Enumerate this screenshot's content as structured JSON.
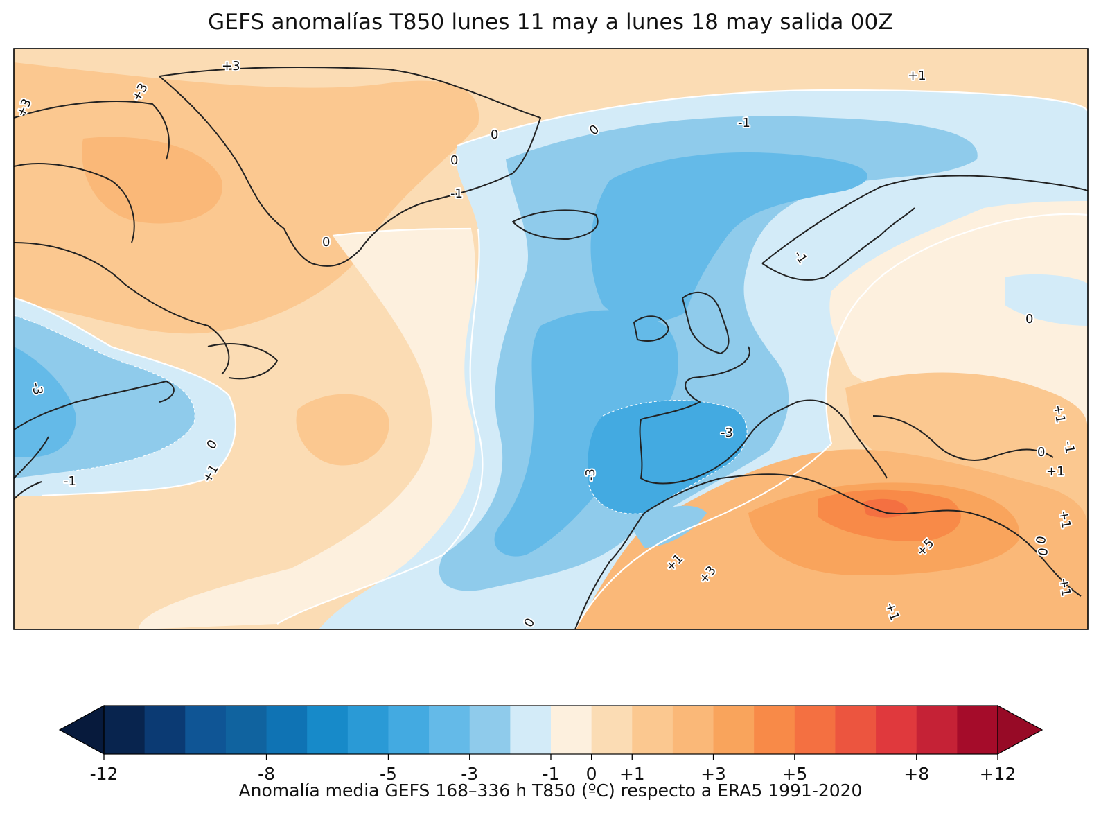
{
  "title": "GEFS anomalías T850 lunes 11 may a lunes 18 may salida 00Z",
  "map": {
    "contour_labels": [
      {
        "text": "+3"
      },
      {
        "text": "+3"
      },
      {
        "text": "+3"
      },
      {
        "text": "0"
      },
      {
        "text": "0"
      },
      {
        "text": "0"
      },
      {
        "text": "-1"
      },
      {
        "text": "0"
      },
      {
        "text": "-1"
      },
      {
        "text": "+1"
      },
      {
        "text": "-1"
      },
      {
        "text": "0"
      },
      {
        "text": "-3"
      },
      {
        "text": "0"
      },
      {
        "text": "+1"
      },
      {
        "text": "-1"
      },
      {
        "text": "-3"
      },
      {
        "text": "-3"
      },
      {
        "text": "+1"
      },
      {
        "text": "+3"
      },
      {
        "text": "+5"
      },
      {
        "text": "0"
      },
      {
        "text": "+1"
      },
      {
        "text": "0"
      },
      {
        "text": "-1"
      },
      {
        "text": "+1"
      },
      {
        "text": "+1"
      },
      {
        "text": "+1"
      },
      {
        "text": "0"
      },
      {
        "text": "+1"
      },
      {
        "text": "0"
      }
    ]
  },
  "colorbar": {
    "colors": [
      "#08244e",
      "#0b3a73",
      "#0f5595",
      "#10639f",
      "#0f73b4",
      "#178ac9",
      "#2a9ad6",
      "#43aae1",
      "#64bae8",
      "#8fcbeb",
      "#d3ebf8",
      "#fdf0de",
      "#fbdcb4",
      "#fbc890",
      "#fab878",
      "#f9a45c",
      "#f88a48",
      "#f47041",
      "#ec553f",
      "#e0393d",
      "#c52236",
      "#a50c2a"
    ],
    "under_color": "#071a3c",
    "over_color": "#970a26",
    "ticks": [
      "-12",
      "-8",
      "-5",
      "-3",
      "-1",
      "0",
      "+1",
      "+3",
      "+5",
      "+8",
      "+12"
    ],
    "label": "Anomalía media GEFS 168–336 h T850 (ºC) respecto a ERA5 1991-2020"
  }
}
